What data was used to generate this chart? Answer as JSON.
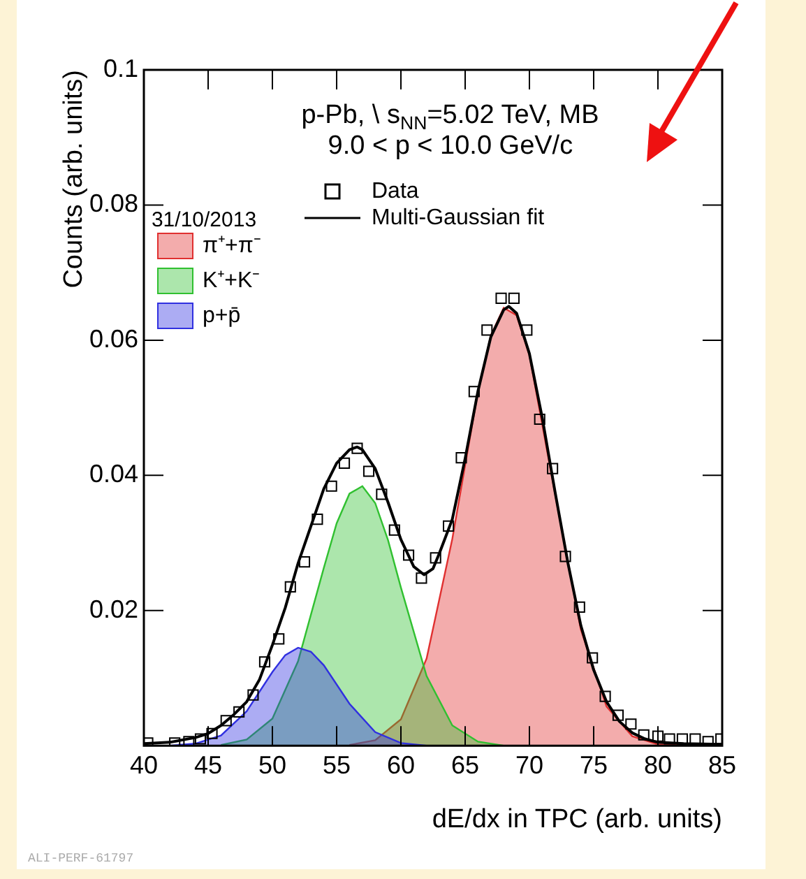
{
  "chart_data": {
    "type": "area",
    "title": "p-Pb, \\ s$_{NN}$=5.02 TeV, MB",
    "subtitle": "9.0 < p < 10.0 GeV/c",
    "xlabel": "dE/dx in TPC (arb. units)",
    "ylabel": "Counts (arb. units)",
    "xlim": [
      40,
      85
    ],
    "xticks": [
      40,
      45,
      50,
      55,
      60,
      65,
      70,
      75,
      80,
      85
    ],
    "ylim": [
      0,
      0.1
    ],
    "yticks": [
      0.02,
      0.04,
      0.06,
      0.08,
      0.1
    ],
    "grid": false,
    "legend": "top left",
    "annotations": [
      "31/10/2013",
      "ALI-PERF-61797"
    ],
    "series": [
      {
        "name": "π⁺+π⁻",
        "color": "#e03030",
        "x": [
          56,
          58,
          60,
          62,
          64,
          66,
          67,
          68,
          69,
          70,
          72,
          74,
          76,
          78,
          80,
          85
        ],
        "values": [
          0.0001,
          0.0008,
          0.0039,
          0.0129,
          0.0306,
          0.0524,
          0.0607,
          0.0648,
          0.0637,
          0.0578,
          0.0372,
          0.0172,
          0.0058,
          0.0014,
          0.0002,
          0
        ]
      },
      {
        "name": "K⁺+K⁻",
        "color": "#30c030",
        "x": [
          46,
          48,
          50,
          52,
          54,
          55,
          56,
          57,
          58,
          59,
          60,
          62,
          64,
          66,
          68
        ],
        "values": [
          0.0001,
          0.0009,
          0.004,
          0.0125,
          0.0263,
          0.0329,
          0.0373,
          0.0384,
          0.0359,
          0.0304,
          0.0234,
          0.0103,
          0.003,
          0.0006,
          0
        ]
      },
      {
        "name": "p+p̄",
        "color": "#3030e0",
        "x": [
          42,
          44,
          46,
          48,
          50,
          51,
          52,
          53,
          54,
          56,
          58,
          60,
          62
        ],
        "values": [
          0,
          0.0003,
          0.0015,
          0.0051,
          0.0109,
          0.0134,
          0.0145,
          0.0139,
          0.0119,
          0.0062,
          0.002,
          0.0004,
          0
        ]
      },
      {
        "name": "Multi-Gaussian fit",
        "type": "line",
        "color": "#000000",
        "x": [
          40,
          42,
          44,
          45,
          46,
          47,
          48,
          49,
          50,
          51,
          52,
          53,
          54,
          55,
          56,
          56.6,
          57,
          58,
          59,
          60,
          61,
          61.8,
          62.5,
          63,
          64,
          65,
          66,
          67,
          68,
          68.4,
          69,
          70,
          71,
          72,
          73,
          74,
          75,
          76,
          77,
          78,
          79,
          80,
          82,
          85
        ],
        "values": [
          0.0003,
          0.0005,
          0.0012,
          0.0018,
          0.003,
          0.0046,
          0.0065,
          0.0098,
          0.0149,
          0.0204,
          0.027,
          0.0325,
          0.038,
          0.0418,
          0.0438,
          0.0442,
          0.0438,
          0.041,
          0.036,
          0.0305,
          0.0265,
          0.0253,
          0.0262,
          0.0285,
          0.0335,
          0.0425,
          0.0525,
          0.0605,
          0.0645,
          0.065,
          0.064,
          0.058,
          0.0485,
          0.0375,
          0.027,
          0.0178,
          0.0112,
          0.0065,
          0.0036,
          0.0019,
          0.001,
          0.0005,
          0.0003,
          0.0002
        ]
      },
      {
        "name": "Data",
        "type": "scatter",
        "marker": "square",
        "color": "#000000",
        "x": [
          40.3,
          42.4,
          43.5,
          44.4,
          45.3,
          46.4,
          47.4,
          48.5,
          49.4,
          50.5,
          51.4,
          52.5,
          53.5,
          54.6,
          55.6,
          56.6,
          57.5,
          58.5,
          59.5,
          60.6,
          61.6,
          62.7,
          63.7,
          64.7,
          65.7,
          66.7,
          67.8,
          68.8,
          69.8,
          70.8,
          71.8,
          72.8,
          73.9,
          74.9,
          75.9,
          76.9,
          77.9,
          78.9,
          80,
          80.9,
          81.9,
          82.9,
          83.9,
          84.9
        ],
        "values": [
          0.0004,
          0.0004,
          0.0006,
          0.001,
          0.0018,
          0.0037,
          0.005,
          0.0075,
          0.0124,
          0.0158,
          0.0235,
          0.0272,
          0.0335,
          0.0384,
          0.0418,
          0.044,
          0.0406,
          0.0372,
          0.0319,
          0.0282,
          0.0248,
          0.0278,
          0.0325,
          0.0426,
          0.0524,
          0.0615,
          0.0662,
          0.0662,
          0.0615,
          0.0483,
          0.041,
          0.028,
          0.0205,
          0.013,
          0.0073,
          0.0045,
          0.0032,
          0.0016,
          0.0014,
          0.001,
          0.001,
          0.001,
          0.0006,
          0.001
        ]
      }
    ]
  }
}
